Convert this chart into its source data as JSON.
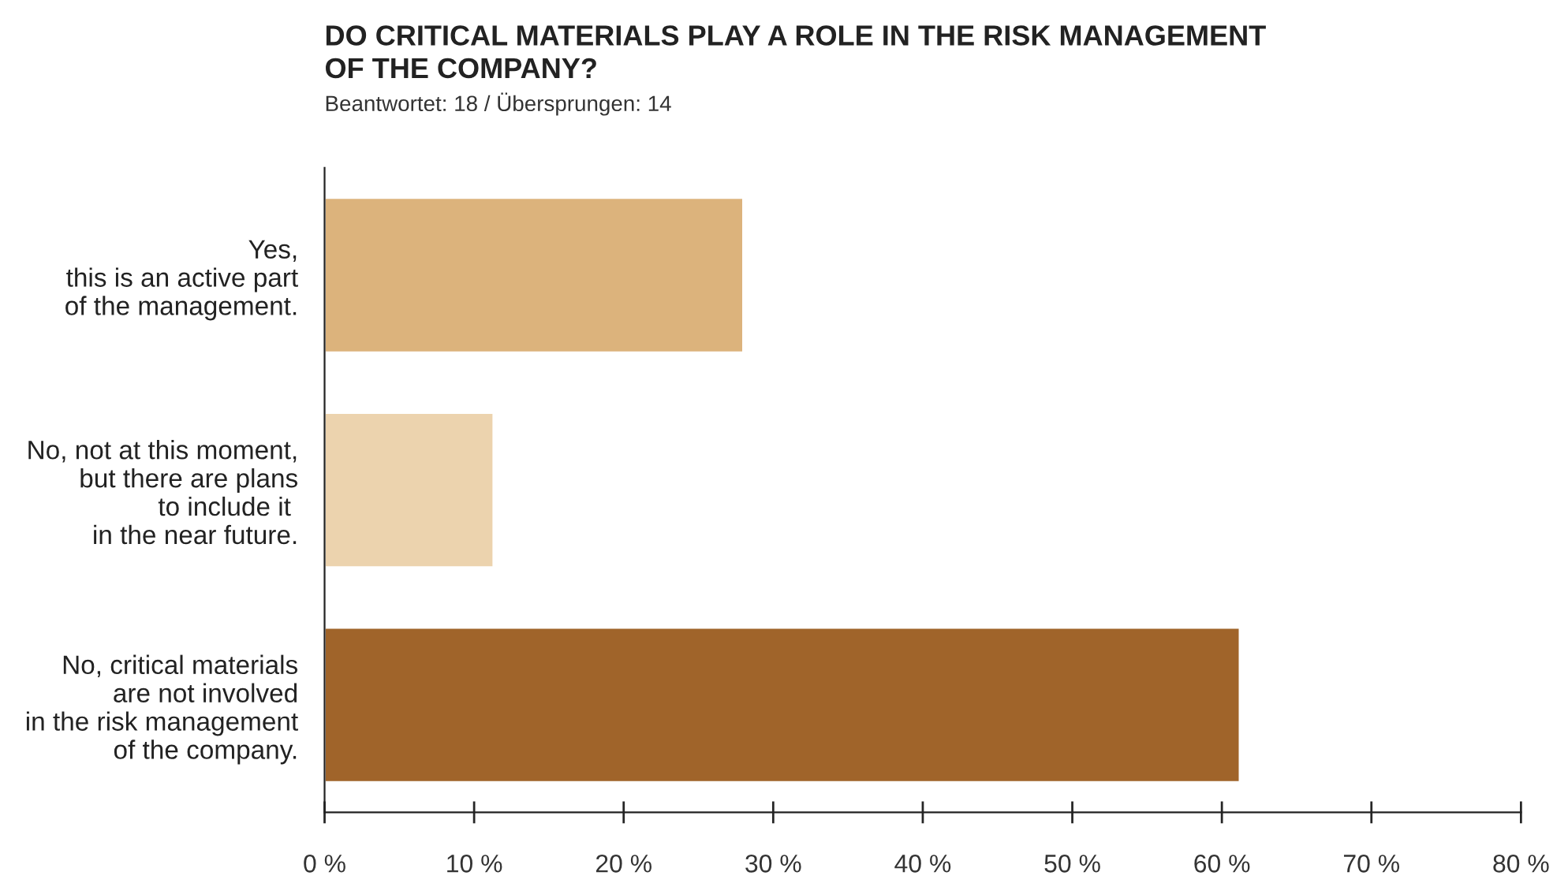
{
  "chart_data": {
    "type": "bar",
    "orientation": "horizontal",
    "title": "DO CRITICAL MATERIALS PLAY A ROLE IN THE RISK MANAGEMENT\nOF THE COMPANY?",
    "subtitle": "Beantwortet: 18 / Übersprungen: 14",
    "categories": [
      "Yes,\nthis is an active part\nof the management.",
      "No, not at this moment,\nbut there are plans\nto include it \nin the near future.",
      "No, critical materials\nare not involved\nin the risk management\nof the company."
    ],
    "values": [
      28,
      11.3,
      61.2
    ],
    "colors": [
      "#dcb37c",
      "#ecd3ae",
      "#a0642a"
    ],
    "xlim": [
      0,
      80
    ],
    "xticks": [
      {
        "value": 0,
        "label": "0 %"
      },
      {
        "value": 10,
        "label": "10 %"
      },
      {
        "value": 20,
        "label": "20 %"
      },
      {
        "value": 30,
        "label": "30 %"
      },
      {
        "value": 40,
        "label": "40 %"
      },
      {
        "value": 50,
        "label": "50 %"
      },
      {
        "value": 60,
        "label": "60 %"
      },
      {
        "value": 70,
        "label": "70 %"
      },
      {
        "value": 80,
        "label": "80 %"
      }
    ],
    "grid": false,
    "legend": false
  }
}
